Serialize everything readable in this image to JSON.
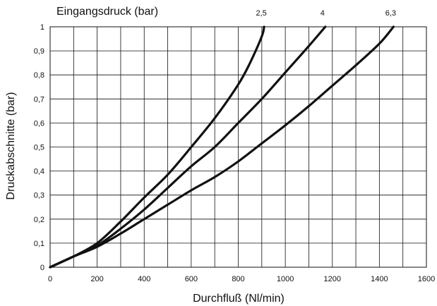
{
  "chart_data": {
    "type": "line",
    "title": "Eingangsdruck (bar)",
    "xlabel": "Durchfluß (Nl/min)",
    "ylabel": "Druckabschnitte (bar)",
    "xlim": [
      0,
      1600
    ],
    "ylim": [
      0,
      1
    ],
    "x_ticks": [
      0,
      200,
      400,
      600,
      800,
      1000,
      1200,
      1400,
      1600
    ],
    "x_tick_labels": [
      "0",
      "200",
      "400",
      "600",
      "800",
      "1000",
      "1200",
      "1400",
      "1600"
    ],
    "y_ticks": [
      0,
      0.1,
      0.2,
      0.3,
      0.4,
      0.5,
      0.6,
      0.7,
      0.8,
      0.9,
      1
    ],
    "y_tick_labels": [
      "0",
      "0,1",
      "0,2",
      "0,3",
      "0,4",
      "0,5",
      "0,6",
      "0,7",
      "0,8",
      "0,9",
      "1"
    ],
    "grid": true,
    "series": [
      {
        "name": "2,5",
        "x": [
          0,
          100,
          200,
          300,
          400,
          500,
          600,
          700,
          800,
          850,
          900,
          910
        ],
        "y": [
          0,
          0.045,
          0.1,
          0.19,
          0.29,
          0.385,
          0.5,
          0.62,
          0.76,
          0.85,
          0.96,
          1.0
        ]
      },
      {
        "name": "4",
        "x": [
          0,
          100,
          200,
          300,
          400,
          500,
          600,
          700,
          800,
          900,
          1000,
          1100,
          1170
        ],
        "y": [
          0,
          0.045,
          0.09,
          0.16,
          0.24,
          0.33,
          0.42,
          0.5,
          0.6,
          0.7,
          0.81,
          0.92,
          1.0
        ]
      },
      {
        "name": "6,3",
        "x": [
          0,
          100,
          200,
          300,
          400,
          500,
          600,
          700,
          800,
          900,
          1000,
          1100,
          1200,
          1300,
          1400,
          1460
        ],
        "y": [
          0,
          0.045,
          0.085,
          0.14,
          0.2,
          0.26,
          0.32,
          0.375,
          0.44,
          0.515,
          0.59,
          0.67,
          0.755,
          0.84,
          0.93,
          1.0
        ]
      }
    ],
    "colors": {
      "line": "#111111",
      "grid": "#111111",
      "background": "#ffffff"
    }
  }
}
